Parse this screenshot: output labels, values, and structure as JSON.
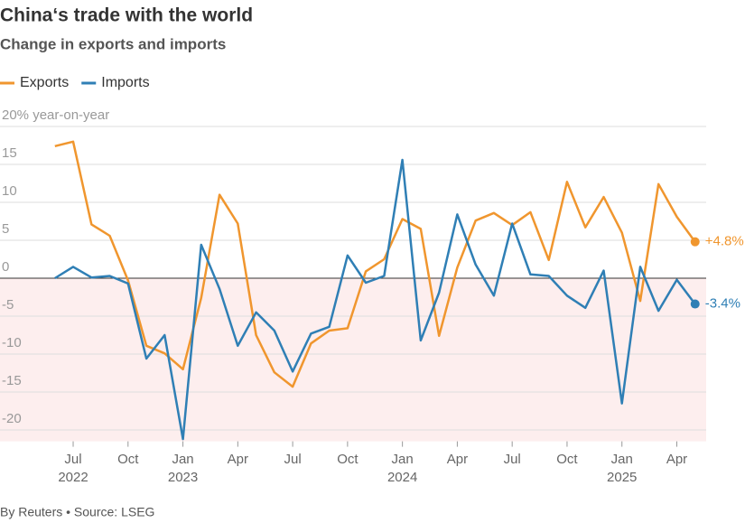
{
  "chart_data": {
    "type": "line",
    "title": "China‘s trade with the world",
    "subtitle": "Change in exports and imports",
    "source": "By Reuters • Source: LSEG",
    "x": [
      "2022-06",
      "2022-07",
      "2022-08",
      "2022-09",
      "2022-10",
      "2022-11",
      "2022-12",
      "2023-01",
      "2023-02",
      "2023-03",
      "2023-04",
      "2023-05",
      "2023-06",
      "2023-07",
      "2023-08",
      "2023-09",
      "2023-10",
      "2023-11",
      "2023-12",
      "2024-01",
      "2024-02",
      "2024-03",
      "2024-04",
      "2024-05",
      "2024-06",
      "2024-07",
      "2024-08",
      "2024-09",
      "2024-10",
      "2024-11",
      "2024-12",
      "2025-01",
      "2025-02",
      "2025-03",
      "2025-04",
      "2025-05"
    ],
    "series": [
      {
        "name": "Exports",
        "color": "#f0962e",
        "end_label": "+4.8%",
        "values": [
          17.4,
          18.0,
          7.1,
          5.6,
          -0.3,
          -8.9,
          -9.9,
          -12.0,
          -2.6,
          11.0,
          7.2,
          -7.5,
          -12.4,
          -14.3,
          -8.6,
          -6.9,
          -6.6,
          0.9,
          2.5,
          7.8,
          6.5,
          -7.6,
          1.4,
          7.6,
          8.6,
          7.0,
          8.7,
          2.4,
          12.7,
          6.7,
          10.7,
          6.0,
          -3.0,
          12.4,
          8.1,
          4.8
        ]
      },
      {
        "name": "Imports",
        "color": "#2f7fb5",
        "end_label": "-3.4%",
        "values": [
          0.0,
          1.5,
          0.1,
          0.3,
          -0.7,
          -10.6,
          -7.5,
          -21.2,
          4.4,
          -1.4,
          -8.9,
          -4.5,
          -6.9,
          -12.3,
          -7.3,
          -6.4,
          3.0,
          -0.6,
          0.3,
          15.6,
          -8.2,
          -1.9,
          8.4,
          1.8,
          -2.3,
          7.2,
          0.5,
          0.3,
          -2.3,
          -3.9,
          1.0,
          -16.5,
          1.5,
          -4.3,
          -0.2,
          -3.4
        ]
      }
    ],
    "xlim": [
      "2022-03",
      "2025-06"
    ],
    "xticks": [
      {
        "value": "2022-07",
        "label": "Jul"
      },
      {
        "value": "2022-10",
        "label": "Oct"
      },
      {
        "value": "2023-01",
        "label": "Jan"
      },
      {
        "value": "2023-04",
        "label": "Apr"
      },
      {
        "value": "2023-07",
        "label": "Jul"
      },
      {
        "value": "2023-10",
        "label": "Oct"
      },
      {
        "value": "2024-01",
        "label": "Jan"
      },
      {
        "value": "2024-04",
        "label": "Apr"
      },
      {
        "value": "2024-07",
        "label": "Jul"
      },
      {
        "value": "2024-10",
        "label": "Oct"
      },
      {
        "value": "2025-01",
        "label": "Jan"
      },
      {
        "value": "2025-04",
        "label": "Apr"
      }
    ],
    "xtick_years": [
      {
        "value": "2022-07",
        "label": "2022"
      },
      {
        "value": "2023-01",
        "label": "2023"
      },
      {
        "value": "2024-01",
        "label": "2024"
      },
      {
        "value": "2025-01",
        "label": "2025"
      }
    ],
    "ylim": [
      -21.5,
      20
    ],
    "yticks": [
      {
        "value": 20,
        "label": "20% year-on-year"
      },
      15,
      10,
      5,
      0,
      -5,
      -10,
      -15,
      -20
    ],
    "grid": true,
    "negative_shade": "#fdeeee"
  }
}
